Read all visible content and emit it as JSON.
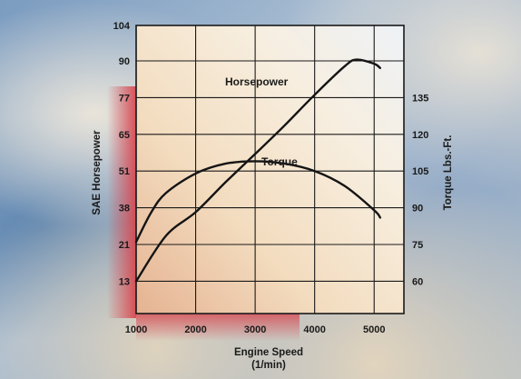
{
  "chart_data": {
    "type": "line",
    "xlabel": "Engine Speed",
    "xunit": "(1/min)",
    "ylabel_left": "SAE Horsepower",
    "ylabel_right": "Torque Lbs.-Ft.",
    "x_ticks": [
      "1000",
      "2000",
      "3000",
      "4000",
      "5000"
    ],
    "xlim": [
      1000,
      5500
    ],
    "y_left_ticks": [
      "104",
      "90",
      "77",
      "65",
      "51",
      "38",
      "21",
      "13"
    ],
    "y_right_ticks": [
      "135",
      "120",
      "105",
      "90",
      "75",
      "60"
    ],
    "grid": true,
    "series": [
      {
        "name": "Horsepower",
        "axis": "left",
        "x": [
          1000,
          1500,
          2000,
          2500,
          3000,
          3500,
          4000,
          4500,
          4700,
          5000,
          5100
        ],
        "y": [
          13,
          25,
          36,
          47,
          57.5,
          68,
          78,
          88,
          90.5,
          89,
          87.5
        ]
      },
      {
        "name": "Torque",
        "axis": "right",
        "x": [
          1000,
          1250,
          1500,
          2000,
          2500,
          3000,
          3500,
          4000,
          4500,
          5000,
          5100
        ],
        "y": [
          76,
          88,
          96,
          104,
          108,
          109,
          108,
          105,
          99,
          89,
          86
        ]
      }
    ]
  }
}
